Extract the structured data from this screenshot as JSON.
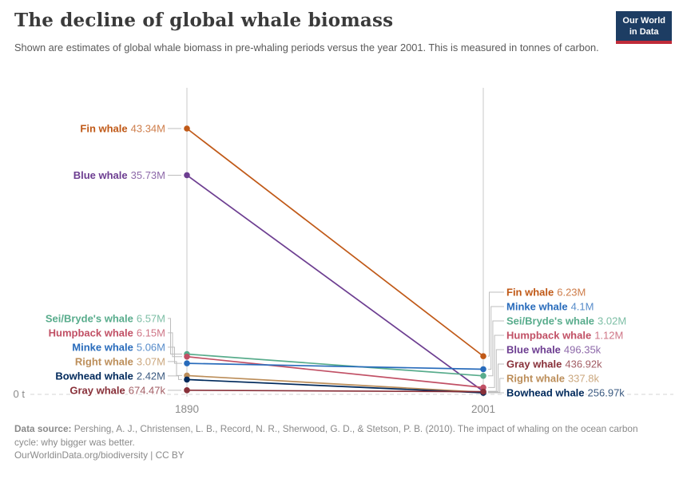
{
  "header": {
    "title": "The decline of global whale biomass",
    "subtitle": "Shown are estimates of global whale biomass in pre-whaling periods versus the year 2001. This is measured in tonnes of carbon.",
    "logo": {
      "line1": "Our World",
      "line2": "in Data",
      "bg_color": "#1d3d63",
      "accent_color": "#bf2b39"
    }
  },
  "chart_data": {
    "type": "line",
    "subtype": "slope",
    "title": "The decline of global whale biomass",
    "x_tick_labels": [
      "1890",
      "2001"
    ],
    "y_zero_label": "0 t",
    "unit": "tonnes of carbon",
    "ylim": [
      0,
      43340000
    ],
    "grid": "two vertical x gridlines, dashed zero line",
    "legend_position": "direct labels left and right of slopes",
    "series": [
      {
        "name": "Fin whale",
        "color": "#c05917",
        "values": [
          43340000,
          6230000
        ],
        "labels": [
          "43.34M",
          "6.23M"
        ]
      },
      {
        "name": "Blue whale",
        "color": "#6d3e91",
        "values": [
          35730000,
          496350
        ],
        "labels": [
          "35.73M",
          "496.35k"
        ]
      },
      {
        "name": "Sei/Bryde's whale",
        "color": "#58ac8c",
        "values": [
          6570000,
          3020000
        ],
        "labels": [
          "6.57M",
          "3.02M"
        ]
      },
      {
        "name": "Humpback whale",
        "color": "#c15065",
        "values": [
          6150000,
          1120000
        ],
        "labels": [
          "6.15M",
          "1.12M"
        ]
      },
      {
        "name": "Minke whale",
        "color": "#286bbb",
        "values": [
          5060000,
          4100000
        ],
        "labels": [
          "5.06M",
          "4.1M"
        ]
      },
      {
        "name": "Right whale",
        "color": "#bc8e5a",
        "values": [
          3070000,
          337800
        ],
        "labels": [
          "3.07M",
          "337.8k"
        ]
      },
      {
        "name": "Bowhead whale",
        "color": "#00295b",
        "values": [
          2420000,
          256970
        ],
        "labels": [
          "2.42M",
          "256.97k"
        ]
      },
      {
        "name": "Gray whale",
        "color": "#883039",
        "values": [
          674470,
          436920
        ],
        "labels": [
          "674.47k",
          "436.92k"
        ]
      }
    ]
  },
  "footer": {
    "source_label": "Data source:",
    "source_text": "Pershing, A. J., Christensen, L. B., Record, N. R., Sherwood, G. D., & Stetson, P. B. (2010). The impact of whaling on the ocean carbon cycle: why bigger was better.",
    "link_line": "OurWorldinData.org/biodiversity | CC BY"
  }
}
